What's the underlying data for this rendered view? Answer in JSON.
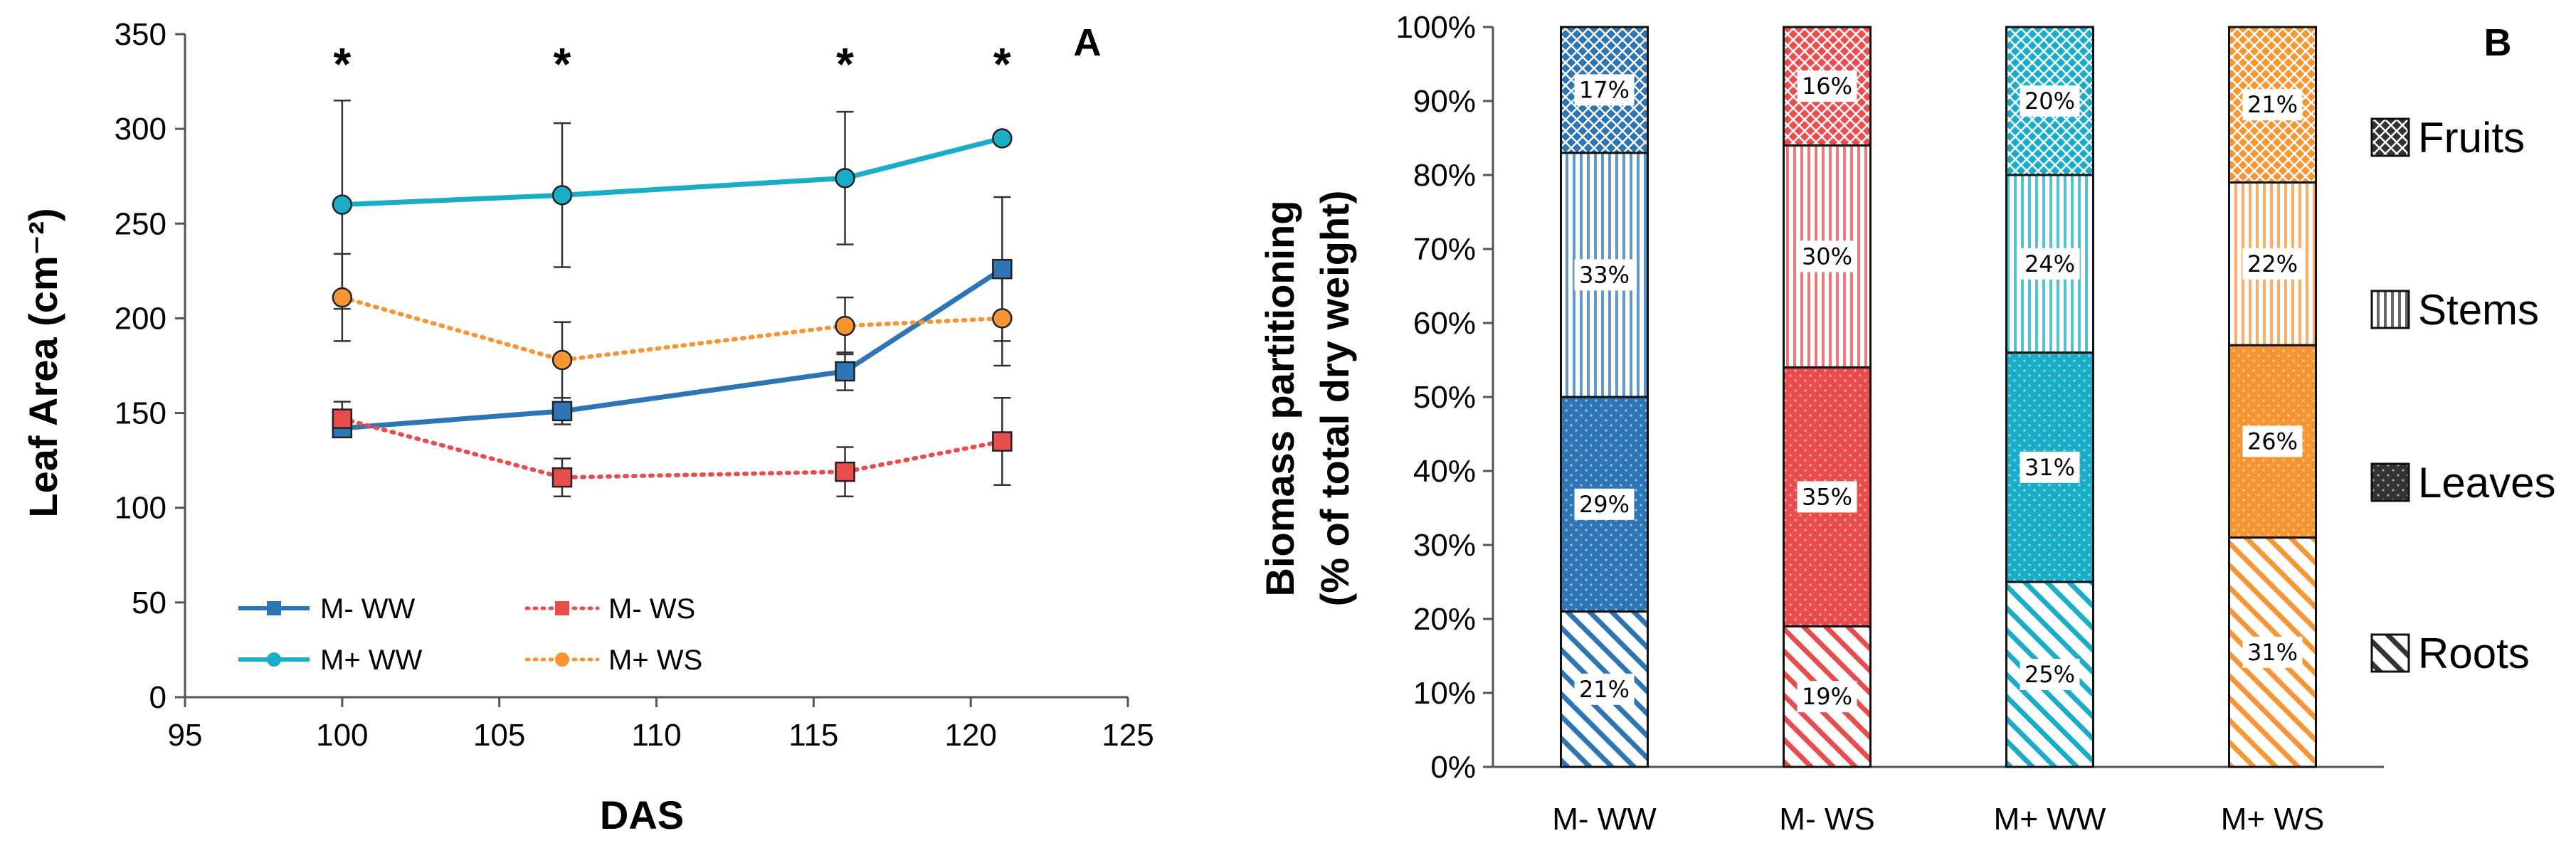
{
  "chart_data": [
    {
      "panel": "A",
      "type": "line",
      "title": "",
      "xlabel": "DAS",
      "ylabel": "Leaf Area (cm⁻²)",
      "xlim": [
        95,
        125
      ],
      "ylim": [
        0,
        350
      ],
      "xticks": [
        "95",
        "100",
        "105",
        "110",
        "115",
        "120",
        "125"
      ],
      "yticks": [
        "0",
        "50",
        "100",
        "150",
        "200",
        "250",
        "300",
        "350"
      ],
      "x": [
        100,
        107,
        116,
        121
      ],
      "significance": [
        "*",
        "*",
        "*",
        "*"
      ],
      "series": [
        {
          "name": "M- WW",
          "marker": "square",
          "style": "solid",
          "color": "#2E75B6",
          "values": [
            142,
            151,
            172,
            226
          ],
          "err": [
            3,
            7,
            10,
            38
          ]
        },
        {
          "name": "M- WS",
          "marker": "square",
          "style": "dotted",
          "color": "#E84C4C",
          "values": [
            147,
            116,
            119,
            135
          ],
          "err": [
            9,
            10,
            13,
            23
          ]
        },
        {
          "name": "M+ WW",
          "marker": "circle",
          "style": "solid",
          "color": "#1AADC7",
          "values": [
            260,
            265,
            274,
            295
          ],
          "err": [
            55,
            38,
            35,
            0
          ]
        },
        {
          "name": "M+ WS",
          "marker": "circle",
          "style": "dotted",
          "color": "#F79533",
          "values": [
            211,
            178,
            196,
            200
          ],
          "err": [
            23,
            20,
            15,
            25
          ]
        }
      ]
    },
    {
      "panel": "B",
      "type": "bar",
      "stacked": true,
      "title": "",
      "xlabel": "",
      "ylabel_line1": "Biomass partitioning",
      "ylabel_line2": "(% of total dry weight)",
      "ylim": [
        0,
        100
      ],
      "yticks": [
        "0%",
        "10%",
        "20%",
        "30%",
        "40%",
        "50%",
        "60%",
        "70%",
        "80%",
        "90%",
        "100%"
      ],
      "categories": [
        "M- WW",
        "M- WS",
        "M+ WW",
        "M+ WS"
      ],
      "colors": [
        "#2E75B6",
        "#E84C4C",
        "#1AADC7",
        "#F79533"
      ],
      "series": [
        {
          "name": "Roots",
          "values": [
            21,
            19,
            25,
            31
          ],
          "labels": [
            "21%",
            "19%",
            "25%",
            "31%"
          ]
        },
        {
          "name": "Leaves",
          "values": [
            29,
            35,
            31,
            26
          ],
          "labels": [
            "29%",
            "35%",
            "31%",
            "26%"
          ]
        },
        {
          "name": "Stems",
          "values": [
            33,
            30,
            24,
            22
          ],
          "labels": [
            "33%",
            "30%",
            "24%",
            "22%"
          ]
        },
        {
          "name": "Fruits",
          "values": [
            17,
            16,
            20,
            21
          ],
          "labels": [
            "17%",
            "16%",
            "20%",
            "21%"
          ]
        }
      ],
      "legend": [
        "Fruits",
        "Stems",
        "Leaves",
        "Roots"
      ]
    }
  ],
  "panel_labels": {
    "a": "A",
    "b": "B"
  }
}
